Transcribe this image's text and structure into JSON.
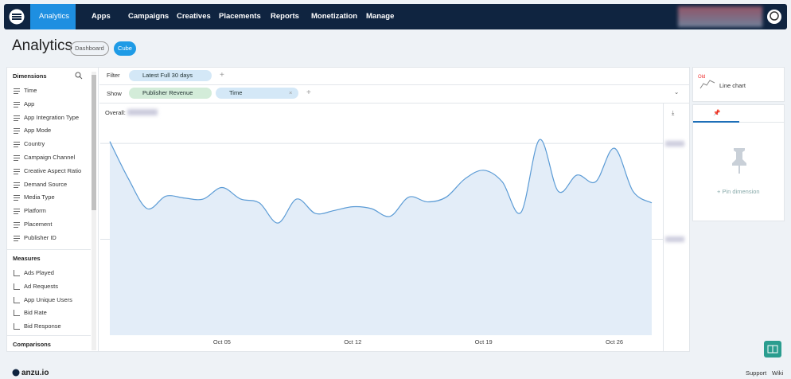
{
  "nav": {
    "items": [
      "Analytics",
      "Apps",
      "Campaigns",
      "Creatives",
      "Placements",
      "Reports",
      "Monetization",
      "Manage"
    ]
  },
  "header": {
    "title": "Analytics",
    "tabs": [
      "Dashboard",
      "Cube"
    ]
  },
  "sidebar": {
    "dimensions_title": "Dimensions",
    "dimensions": [
      "Time",
      "App",
      "App Integration Type",
      "App Mode",
      "Country",
      "Campaign Channel",
      "Creative Aspect Ratio",
      "Demand Source",
      "Media Type",
      "Platform",
      "Placement",
      "Publisher ID"
    ],
    "measures_title": "Measures",
    "measures": [
      "Ads Played",
      "Ad Requests",
      "App Unique Users",
      "Bid Rate",
      "Bid Response"
    ],
    "comparisons_title": "Comparisons"
  },
  "query": {
    "filter_label": "Filter",
    "filter_chips": [
      "Latest Full 30 days"
    ],
    "show_label": "Show",
    "show_chips": [
      "Publisher Revenue",
      "Time"
    ]
  },
  "chart_data": {
    "type": "line",
    "overall_label": "Overall:",
    "color": "#5b9bd5",
    "categories": [
      null,
      null,
      null,
      null,
      null,
      null,
      "Oct 05",
      null,
      null,
      null,
      null,
      null,
      null,
      "Oct 12",
      null,
      null,
      null,
      null,
      null,
      null,
      "Oct 19",
      null,
      null,
      null,
      null,
      null,
      null,
      "Oct 26",
      null,
      null
    ],
    "values": [
      2.02,
      1.63,
      1.32,
      1.45,
      1.43,
      1.42,
      1.54,
      1.42,
      1.38,
      1.17,
      1.42,
      1.27,
      1.3,
      1.34,
      1.32,
      1.24,
      1.44,
      1.39,
      1.44,
      1.63,
      1.72,
      1.6,
      1.28,
      2.04,
      1.5,
      1.67,
      1.6,
      1.95,
      1.5,
      1.38
    ],
    "ylim": [
      0,
      2.25
    ],
    "yticks": [
      1,
      2
    ],
    "grid": true
  },
  "side_panel": {
    "badge": "Old",
    "chart_type": "Line chart",
    "pin_action": "Pin dimension"
  },
  "footer": {
    "brand": "anzu.io",
    "links": [
      "Support",
      "Wiki"
    ]
  }
}
